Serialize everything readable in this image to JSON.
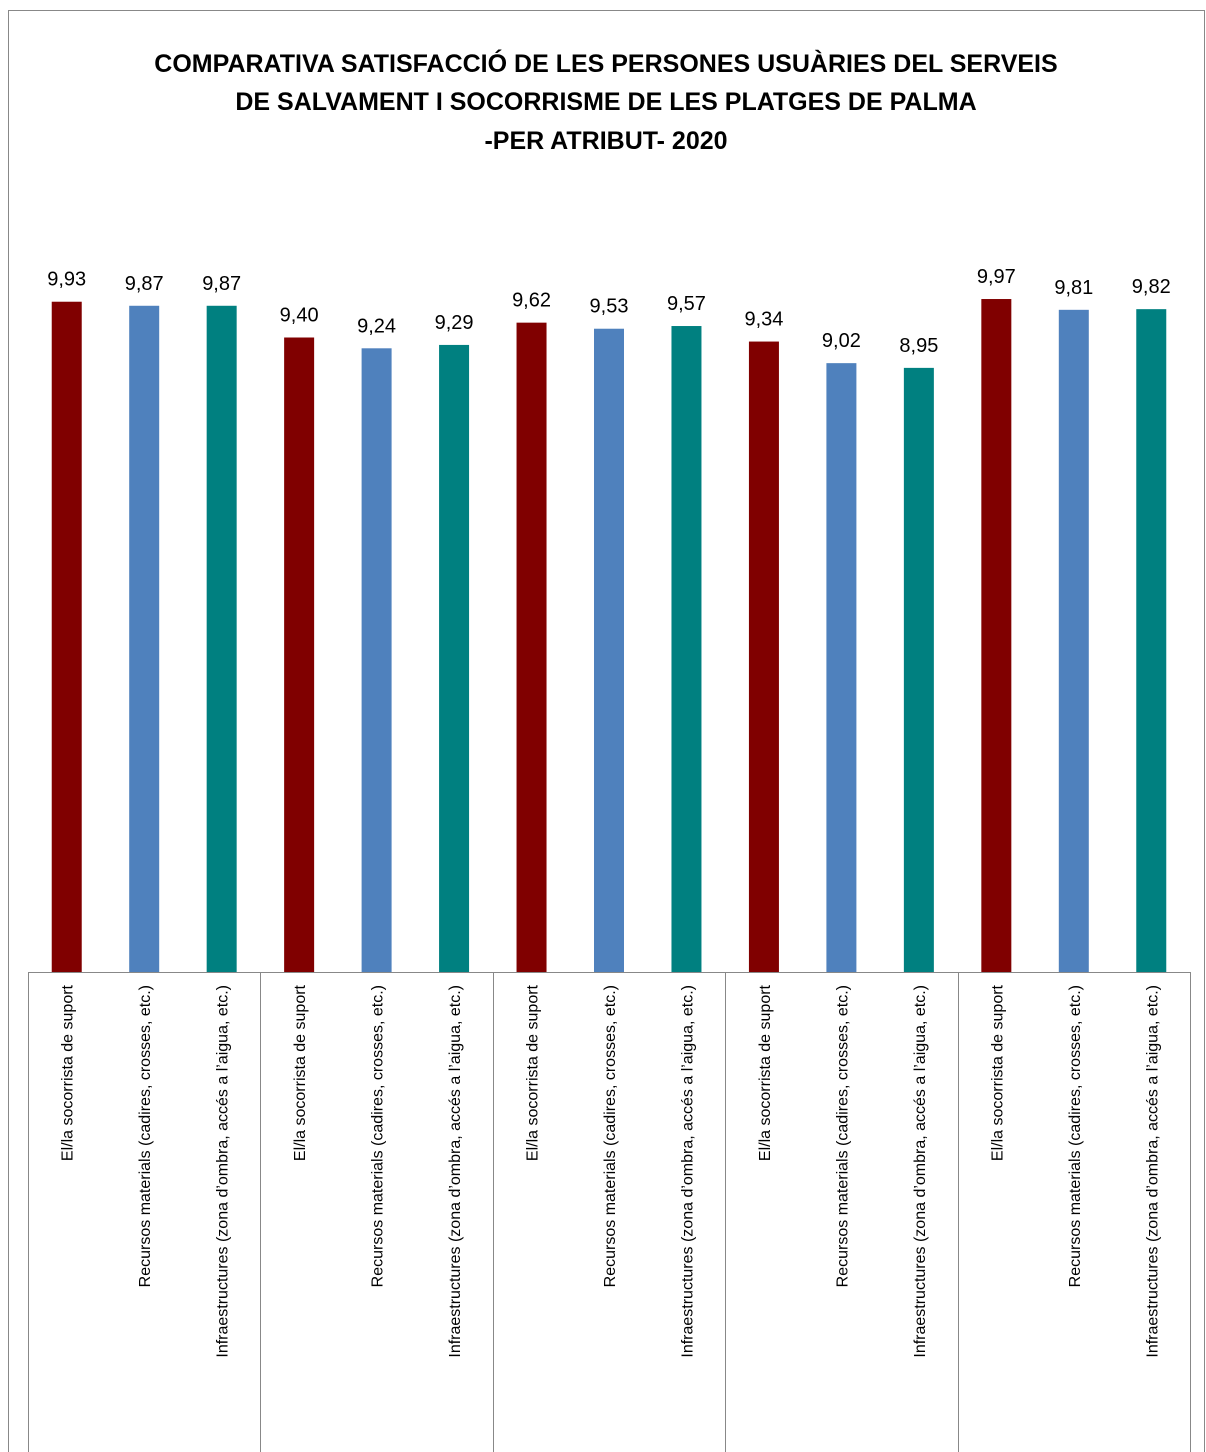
{
  "chart_data": {
    "type": "bar",
    "title": [
      "COMPARATIVA SATISFACCIÓ DE LES PERSONES USUÀRIES DEL SERVEIS",
      "DE SALVAMENT I SOCORRISME DE LES PLATGES DE PALMA",
      "-PER ATRIBUT- 2020"
    ],
    "categories": [
      "El/la socorrista de suport",
      "Recursos materials (cadires, crosses, etc.)",
      "Infraestructures (zona d’ombra, accés a l’aigua, etc.)",
      "El/la socorrista de suport",
      "Recursos materials (cadires, crosses, etc.)",
      "Infraestructures (zona d’ombra, accés a l’aigua, etc.)",
      "El/la socorrista de suport",
      "Recursos materials (cadires, crosses, etc.)",
      "Infraestructures (zona d’ombra, accés a l’aigua, etc.)",
      "El/la socorrista de suport",
      "Recursos materials (cadires, crosses, etc.)",
      "Infraestructures (zona d’ombra, accés a l’aigua, etc.)",
      "El/la socorrista de suport",
      "Recursos materials (cadires, crosses, etc.)",
      "Infraestructures (zona d’ombra, accés a l’aigua, etc.)"
    ],
    "values": [
      9.93,
      9.87,
      9.87,
      9.4,
      9.24,
      9.29,
      9.62,
      9.53,
      9.57,
      9.34,
      9.02,
      8.95,
      9.97,
      9.81,
      9.82
    ],
    "value_labels": [
      "9,93",
      "9,87",
      "9,87",
      "9,40",
      "9,24",
      "9,29",
      "9,62",
      "9,53",
      "9,57",
      "9,34",
      "9,02",
      "8,95",
      "9,97",
      "9,81",
      "9,82"
    ],
    "colors": [
      "#800000",
      "#4f81bd",
      "#008080",
      "#800000",
      "#4f81bd",
      "#008080",
      "#800000",
      "#4f81bd",
      "#008080",
      "#800000",
      "#4f81bd",
      "#008080",
      "#800000",
      "#4f81bd",
      "#008080"
    ],
    "ylim": [
      0,
      10
    ]
  }
}
